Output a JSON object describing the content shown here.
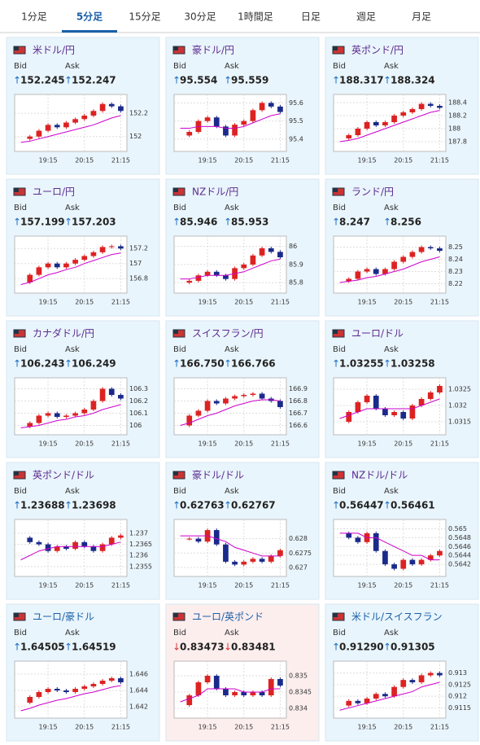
{
  "tabs": {
    "items": [
      "1分足",
      "5分足",
      "15分足",
      "30分足",
      "1時間足",
      "日足",
      "週足",
      "月足"
    ],
    "selected": 1
  },
  "labels": {
    "bid": "Bid",
    "ask": "Ask"
  },
  "time_axis": [
    null,
    null,
    null,
    "19:15",
    null,
    null,
    null,
    "20:15",
    null,
    null,
    null,
    "21:15"
  ],
  "pairs": [
    {
      "name": "米ドル/円",
      "title_color": "#5b2a8e",
      "arrow": "↑",
      "bid": "152.245",
      "ask": "152.247",
      "bg": "#e9f5fc",
      "chart": {
        "type": "candlestick",
        "ylim": [
          151.9,
          152.32
        ],
        "yticks": [
          152.2,
          152
        ],
        "values": [
          151.98,
          152.0,
          152.05,
          152.1,
          152.08,
          152.12,
          152.15,
          152.18,
          152.22,
          152.28,
          152.26,
          152.22
        ],
        "ma": [
          151.95,
          151.96,
          151.98,
          152.0,
          152.02,
          152.04,
          152.06,
          152.08,
          152.1,
          152.13,
          152.16,
          152.18
        ]
      }
    },
    {
      "name": "豪ドル/円",
      "title_color": "#5b2a8e",
      "arrow": "↑",
      "bid": "95.554",
      "ask": "95.559",
      "bg": "#e9f5fc",
      "chart": {
        "type": "candlestick",
        "ylim": [
          95.35,
          95.62
        ],
        "yticks": [
          95.6,
          95.5,
          95.4
        ],
        "values": [
          95.42,
          95.44,
          95.5,
          95.52,
          95.47,
          95.42,
          95.48,
          95.5,
          95.56,
          95.6,
          95.58,
          95.55
        ],
        "ma": [
          95.46,
          95.46,
          95.47,
          95.47,
          95.47,
          95.46,
          95.46,
          95.47,
          95.49,
          95.51,
          95.53,
          95.54
        ]
      }
    },
    {
      "name": "英ポンド/円",
      "title_color": "#5b2a8e",
      "arrow": "↑",
      "bid": "188.317",
      "ask": "188.324",
      "bg": "#e9f5fc",
      "chart": {
        "type": "candlestick",
        "ylim": [
          187.7,
          188.45
        ],
        "yticks": [
          188.4,
          188.2,
          188,
          187.8
        ],
        "values": [
          187.85,
          187.9,
          188.0,
          188.1,
          188.05,
          188.1,
          188.2,
          188.25,
          188.3,
          188.38,
          188.35,
          188.32
        ],
        "ma": [
          187.8,
          187.82,
          187.85,
          187.9,
          187.95,
          188.0,
          188.05,
          188.1,
          188.15,
          188.2,
          188.25,
          188.28
        ]
      }
    },
    {
      "name": "ユーロ/円",
      "title_color": "#5b2a8e",
      "arrow": "↑",
      "bid": "157.199",
      "ask": "157.203",
      "bg": "#e9f5fc",
      "chart": {
        "type": "candlestick",
        "ylim": [
          156.65,
          157.3
        ],
        "yticks": [
          157.2,
          157,
          156.8
        ],
        "values": [
          156.75,
          156.85,
          156.95,
          157.0,
          156.95,
          157.0,
          157.05,
          157.1,
          157.15,
          157.22,
          157.23,
          157.2
        ],
        "ma": [
          156.72,
          156.75,
          156.8,
          156.85,
          156.88,
          156.92,
          156.95,
          157.0,
          157.04,
          157.08,
          157.12,
          157.14
        ]
      }
    },
    {
      "name": "NZドル/円",
      "title_color": "#5b2a8e",
      "arrow": "↑",
      "bid": "85.946",
      "ask": "85.953",
      "bg": "#e9f5fc",
      "chart": {
        "type": "candlestick",
        "ylim": [
          85.76,
          86.03
        ],
        "yticks": [
          86,
          85.9,
          85.8
        ],
        "values": [
          85.8,
          85.81,
          85.84,
          85.86,
          85.84,
          85.82,
          85.88,
          85.9,
          85.95,
          85.99,
          85.97,
          85.94
        ],
        "ma": [
          85.82,
          85.82,
          85.83,
          85.84,
          85.84,
          85.84,
          85.85,
          85.86,
          85.88,
          85.9,
          85.92,
          85.93
        ]
      }
    },
    {
      "name": "ランド/円",
      "title_color": "#5b2a8e",
      "arrow": "↑",
      "bid": "8.247",
      "ask": "8.256",
      "bg": "#e9f5fc",
      "chart": {
        "type": "candlestick",
        "ylim": [
          8.215,
          8.255
        ],
        "yticks": [
          8.25,
          8.24,
          8.23,
          8.22
        ],
        "values": [
          8.222,
          8.224,
          8.23,
          8.232,
          8.228,
          8.232,
          8.238,
          8.242,
          8.246,
          8.25,
          8.249,
          8.247
        ],
        "ma": [
          8.221,
          8.222,
          8.223,
          8.225,
          8.226,
          8.228,
          8.23,
          8.232,
          8.235,
          8.238,
          8.24,
          8.242
        ]
      }
    },
    {
      "name": "カナダドル/円",
      "title_color": "#5b2a8e",
      "arrow": "↑",
      "bid": "106.243",
      "ask": "106.249",
      "bg": "#e9f5fc",
      "chart": {
        "type": "candlestick",
        "ylim": [
          105.95,
          106.35
        ],
        "yticks": [
          106.3,
          106.2,
          106.1,
          106
        ],
        "values": [
          105.99,
          106.02,
          106.08,
          106.1,
          106.07,
          106.08,
          106.1,
          106.13,
          106.2,
          106.3,
          106.25,
          106.22
        ],
        "ma": [
          105.98,
          105.99,
          106.0,
          106.02,
          106.04,
          106.05,
          106.07,
          106.08,
          106.1,
          106.13,
          106.15,
          106.17
        ]
      }
    },
    {
      "name": "スイスフラン/円",
      "title_color": "#5b2a8e",
      "arrow": "↑",
      "bid": "166.750",
      "ask": "166.766",
      "bg": "#e9f5fc",
      "chart": {
        "type": "candlestick",
        "ylim": [
          166.55,
          166.95
        ],
        "yticks": [
          166.9,
          166.8,
          166.7,
          166.6
        ],
        "values": [
          166.6,
          166.68,
          166.72,
          166.8,
          166.78,
          166.82,
          166.84,
          166.85,
          166.86,
          166.82,
          166.8,
          166.75
        ],
        "ma": [
          166.6,
          166.62,
          166.65,
          166.68,
          166.7,
          166.73,
          166.76,
          166.78,
          166.8,
          166.81,
          166.81,
          166.8
        ]
      }
    },
    {
      "name": "ユーロ/ドル",
      "title_color": "#5b2a8e",
      "arrow": "↑",
      "bid": "1.03255",
      "ask": "1.03258",
      "bg": "#e9f5fc",
      "chart": {
        "type": "candlestick",
        "ylim": [
          1.0312,
          1.0327
        ],
        "yticks": [
          1.0325,
          1.032,
          1.0315
        ],
        "values": [
          1.0315,
          1.0318,
          1.0321,
          1.0323,
          1.0319,
          1.0317,
          1.0318,
          1.0316,
          1.032,
          1.0322,
          1.0324,
          1.0326
        ],
        "ma": [
          1.0316,
          1.0317,
          1.0318,
          1.0319,
          1.0319,
          1.0319,
          1.0319,
          1.0319,
          1.0319,
          1.032,
          1.0321,
          1.0322
        ]
      }
    },
    {
      "name": "英ポンド/ドル",
      "title_color": "#5b2a8e",
      "arrow": "↑",
      "bid": "1.23688",
      "ask": "1.23698",
      "bg": "#e9f5fc",
      "chart": {
        "type": "candlestick",
        "ylim": [
          1.2352,
          1.2374
        ],
        "yticks": [
          1.237,
          1.2365,
          1.236,
          1.2355
        ],
        "values": [
          1.2368,
          1.2366,
          1.2365,
          1.2362,
          1.2364,
          1.2363,
          1.2366,
          1.2364,
          1.2362,
          1.2365,
          1.2368,
          1.2369
        ],
        "ma": [
          1.2358,
          1.236,
          1.2362,
          1.2363,
          1.2364,
          1.2364,
          1.2364,
          1.2364,
          1.2364,
          1.2364,
          1.2365,
          1.2366
        ]
      }
    },
    {
      "name": "豪ドル/ドル",
      "title_color": "#5b2a8e",
      "arrow": "↑",
      "bid": "0.62763",
      "ask": "0.62767",
      "bg": "#e9f5fc",
      "chart": {
        "type": "candlestick",
        "ylim": [
          0.6268,
          0.6285
        ],
        "yticks": [
          0.628,
          0.6275,
          0.627
        ],
        "values": [
          0.628,
          0.628,
          0.6279,
          0.6283,
          0.6278,
          0.6272,
          0.6271,
          0.6272,
          0.6273,
          0.6272,
          0.6274,
          0.6276
        ],
        "ma": [
          0.6281,
          0.6281,
          0.6281,
          0.6281,
          0.628,
          0.6279,
          0.6277,
          0.6276,
          0.6275,
          0.6274,
          0.6274,
          0.6274
        ]
      }
    },
    {
      "name": "NZドル/ドル",
      "title_color": "#5b2a8e",
      "arrow": "↑",
      "bid": "0.56447",
      "ask": "0.56461",
      "bg": "#e9f5fc",
      "chart": {
        "type": "candlestick",
        "ylim": [
          0.564,
          0.5651
        ],
        "yticks": [
          0.565,
          0.5648,
          0.5646,
          0.5644,
          0.5642
        ],
        "values": [
          0.5649,
          0.5648,
          0.5647,
          0.5649,
          0.5645,
          0.5642,
          0.5641,
          0.5643,
          0.5642,
          0.5643,
          0.5644,
          0.5645
        ],
        "ma": [
          0.5649,
          0.5649,
          0.5649,
          0.5648,
          0.5648,
          0.5647,
          0.5646,
          0.5645,
          0.5644,
          0.5644,
          0.5643,
          0.5643
        ]
      }
    },
    {
      "name": "ユーロ/豪ドル",
      "title_color": "#1a5fa8",
      "arrow": "↑",
      "bid": "1.64505",
      "ask": "1.64519",
      "bg": "#e9f5fc",
      "chart": {
        "type": "candlestick",
        "ylim": [
          1.641,
          1.647
        ],
        "yticks": [
          1.646,
          1.644,
          1.642
        ],
        "values": [
          1.6425,
          1.6432,
          1.6438,
          1.6442,
          1.644,
          1.6438,
          1.6442,
          1.6445,
          1.6448,
          1.6452,
          1.6455,
          1.645
        ],
        "ma": [
          1.6415,
          1.6418,
          1.6422,
          1.6425,
          1.6428,
          1.643,
          1.6433,
          1.6436,
          1.6438,
          1.6441,
          1.6444,
          1.6446
        ]
      }
    },
    {
      "name": "ユーロ/英ポンド",
      "title_color": "#1a5fa8",
      "arrow": "↓",
      "bid": "0.83473",
      "ask": "0.83481",
      "bg": "#fdeeee",
      "chart": {
        "type": "candlestick",
        "ylim": [
          0.8338,
          0.8353
        ],
        "yticks": [
          0.835,
          0.8345,
          0.834
        ],
        "values": [
          0.8341,
          0.8344,
          0.8348,
          0.835,
          0.8346,
          0.8344,
          0.8345,
          0.8344,
          0.8345,
          0.8344,
          0.8349,
          0.8347
        ],
        "ma": [
          0.8342,
          0.8343,
          0.8344,
          0.8346,
          0.8346,
          0.8346,
          0.8346,
          0.8345,
          0.8345,
          0.8345,
          0.8346,
          0.8346
        ]
      }
    },
    {
      "name": "米ドル/スイスフラン",
      "title_color": "#1a5fa8",
      "arrow": "↑",
      "bid": "0.91290",
      "ask": "0.91305",
      "bg": "#e9f5fc",
      "chart": {
        "type": "candlestick",
        "ylim": [
          0.9112,
          0.9133
        ],
        "yticks": [
          0.913,
          0.9125,
          0.912,
          0.9115
        ],
        "values": [
          0.9116,
          0.9118,
          0.9117,
          0.9119,
          0.9121,
          0.912,
          0.9124,
          0.9127,
          0.9126,
          0.9129,
          0.913,
          0.9129
        ],
        "ma": [
          0.9114,
          0.9115,
          0.9116,
          0.9117,
          0.9118,
          0.9119,
          0.912,
          0.9121,
          0.9122,
          0.9124,
          0.9125,
          0.9126
        ]
      }
    }
  ]
}
